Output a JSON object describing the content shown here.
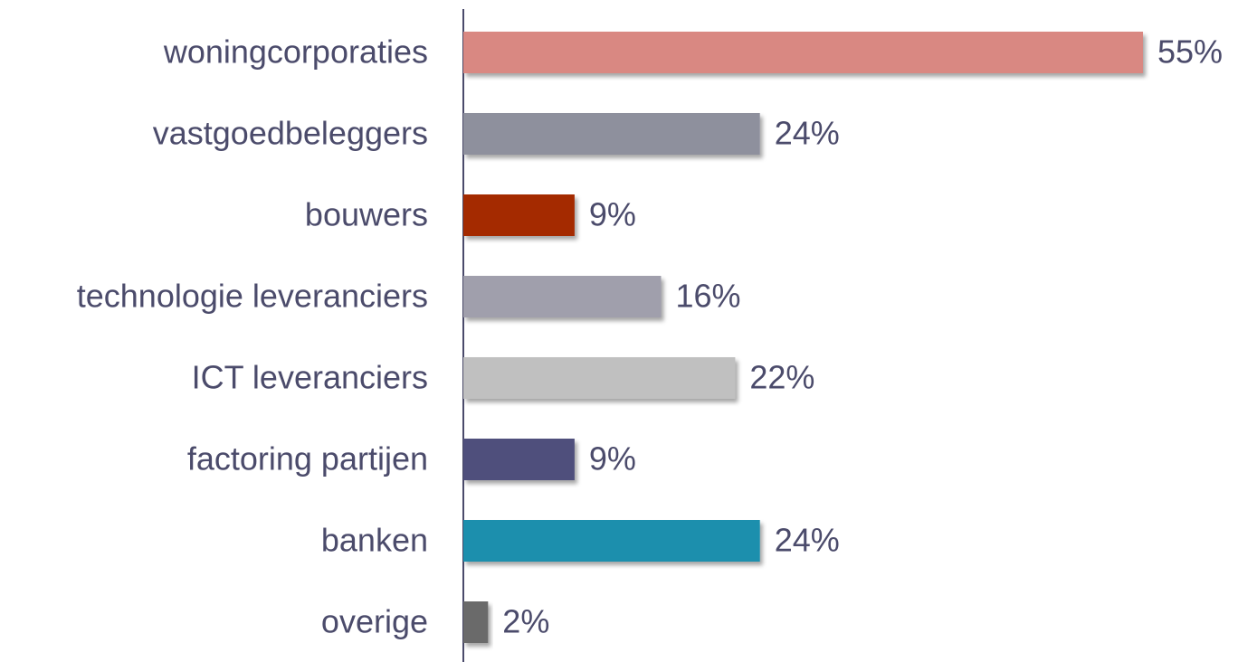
{
  "chart_data": {
    "type": "bar",
    "orientation": "horizontal",
    "categories": [
      "woningcorporaties",
      "vastgoedbeleggers",
      "bouwers",
      "technologie leveranciers",
      "ICT leveranciers",
      "factoring partijen",
      "banken",
      "overige"
    ],
    "values": [
      55,
      24,
      9,
      16,
      22,
      9,
      24,
      2
    ],
    "value_labels": [
      "55%",
      "24%",
      "9%",
      "16%",
      "22%",
      "9%",
      "24%",
      "2%"
    ],
    "colors": [
      "#d98882",
      "#8e909d",
      "#a42900",
      "#a09fac",
      "#c0c0c0",
      "#4f4f7b",
      "#1e8fad",
      "#6b6b6b"
    ]
  }
}
